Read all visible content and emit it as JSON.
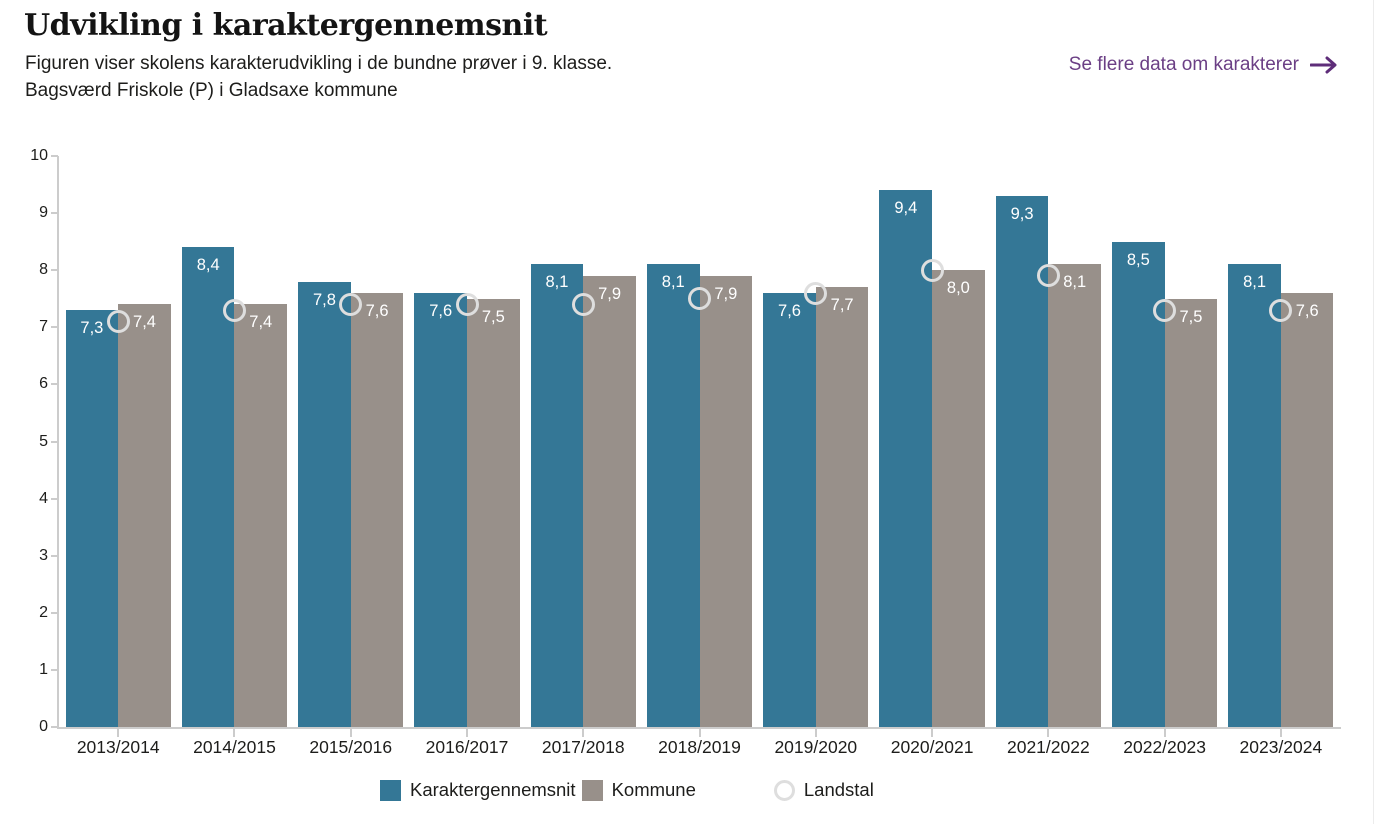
{
  "header": {
    "title": "Udvikling i karaktergennemsnit",
    "subtitle": "Figuren viser skolens karakterudvikling i de bundne prøver i 9. klasse.",
    "school_line": "Bagsværd Friskole (P) i Gladsaxe kommune",
    "link": {
      "label": "Se flere data om karakterer"
    }
  },
  "colors": {
    "school_bar": "#347796",
    "kommune_bar": "#98908a",
    "landstal_ring": "#dedede",
    "axis": "#cccccc",
    "link": "#6b3f85",
    "bar_label": "#ffffff"
  },
  "chart_data": {
    "type": "bar",
    "title": "Udvikling i karaktergennemsnit",
    "categories": [
      "2013/2014",
      "2014/2015",
      "2015/2016",
      "2016/2017",
      "2017/2018",
      "2018/2019",
      "2019/2020",
      "2020/2021",
      "2021/2022",
      "2022/2023",
      "2023/2024"
    ],
    "series": [
      {
        "name": "Karaktergennemsnit",
        "type": "bar",
        "values": [
          7.3,
          8.4,
          7.8,
          7.6,
          8.1,
          8.1,
          7.6,
          9.4,
          9.3,
          8.5,
          8.1
        ]
      },
      {
        "name": "Kommune",
        "type": "bar",
        "values": [
          7.4,
          7.4,
          7.6,
          7.5,
          7.9,
          7.9,
          7.7,
          8.0,
          8.1,
          7.5,
          7.6
        ]
      },
      {
        "name": "Landstal",
        "type": "circle-marker",
        "values": [
          7.1,
          7.3,
          7.4,
          7.4,
          7.4,
          7.5,
          7.6,
          8.0,
          7.9,
          7.3,
          7.3
        ]
      }
    ],
    "bar_value_labels_visible": true,
    "marker_value_labels_visible": false,
    "decimal_separator": ",",
    "xlabel": "",
    "ylabel": "",
    "ylim": [
      0,
      10
    ],
    "yticks": [
      0,
      1,
      2,
      3,
      4,
      5,
      6,
      7,
      8,
      9,
      10
    ],
    "grid": false,
    "legend_position": "bottom"
  }
}
